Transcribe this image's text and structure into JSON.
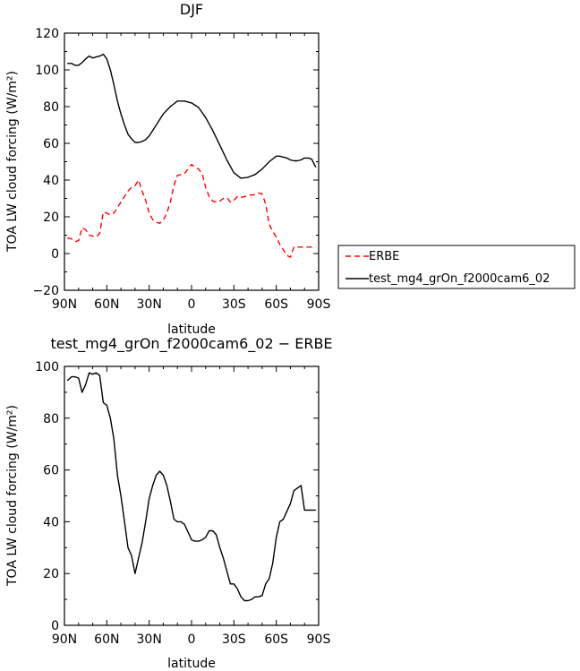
{
  "chart_data": [
    {
      "type": "line",
      "title": "DJF",
      "xlabel": "latitude",
      "ylabel": "TOA LW cloud forcing (W/m²)",
      "xlim": [
        90,
        -90
      ],
      "ylim": [
        -20,
        120
      ],
      "x_ticks": [
        "90N",
        "60N",
        "30N",
        "0",
        "30S",
        "60S",
        "90S"
      ],
      "y_ticks": [
        "−20",
        "0",
        "20",
        "40",
        "60",
        "80",
        "100",
        "120"
      ],
      "legend_position": "right",
      "series": [
        {
          "name": "ERBE",
          "color": "#ff0000",
          "style": "dashed",
          "x": [
            88,
            85,
            82.5,
            80,
            77.5,
            75,
            72.5,
            70,
            67.5,
            65,
            62.5,
            60,
            57.5,
            55,
            52.5,
            50,
            47.5,
            45,
            42.5,
            40,
            37.5,
            35,
            32.5,
            30,
            27.5,
            25,
            22.5,
            20,
            17.5,
            15,
            12.5,
            10,
            7.5,
            5,
            2.5,
            0,
            -2.5,
            -5,
            -7.5,
            -10,
            -12.5,
            -15,
            -17.5,
            -20,
            -22.5,
            -25,
            -27.5,
            -30,
            -32.5,
            -35,
            -37.5,
            -40,
            -42.5,
            -45,
            -47.5,
            -50,
            -52.5,
            -55,
            -57.5,
            -60,
            -62.5,
            -65,
            -67.5,
            -70,
            -72.5,
            -75,
            -77.5,
            -80,
            -82.5,
            -85,
            -88
          ],
          "values": [
            8.5,
            8,
            6.5,
            7,
            14,
            13,
            10,
            9.5,
            9,
            11,
            22.5,
            22,
            21,
            22,
            25,
            28,
            31,
            34,
            36,
            37,
            40,
            34,
            29,
            22,
            18.5,
            17,
            16.5,
            18,
            22,
            28,
            37,
            42.5,
            43,
            43.5,
            46,
            48.5,
            47,
            46,
            43.5,
            36,
            31,
            28.5,
            28,
            28.5,
            30,
            30.5,
            28,
            29,
            31,
            30.5,
            31,
            31.5,
            32,
            32,
            33,
            32.5,
            27,
            16,
            12,
            9,
            5,
            2,
            -1,
            -2,
            3.5,
            3.5,
            3.5,
            3.5,
            3.5,
            3.5,
            3.5
          ]
        },
        {
          "name": "test_mg4_grOn_f2000cam6_02",
          "color": "#000000",
          "style": "solid",
          "x": [
            88,
            85,
            82.5,
            80,
            77.5,
            75,
            72.5,
            70,
            67.5,
            65,
            62.5,
            60,
            57.5,
            55,
            52.5,
            50,
            47.5,
            45,
            42.5,
            40,
            37.5,
            35,
            32.5,
            30,
            25,
            20,
            15,
            10,
            5,
            0,
            -5,
            -10,
            -15,
            -20,
            -25,
            -30,
            -35,
            -40,
            -45,
            -50,
            -55,
            -60,
            -62.5,
            -65,
            -67.5,
            -70,
            -72.5,
            -75,
            -77.5,
            -80,
            -82.5,
            -85,
            -88
          ],
          "values": [
            103.5,
            103.5,
            102.5,
            102.5,
            104,
            106,
            107.5,
            106.5,
            107,
            107.5,
            108.5,
            106,
            100,
            92,
            83,
            76,
            70,
            65,
            62.5,
            60.5,
            60.5,
            61,
            62,
            64,
            70,
            76,
            80,
            83,
            83,
            82,
            79.5,
            74,
            67,
            59,
            51,
            44,
            41,
            41.5,
            43,
            46,
            50,
            53,
            53,
            52.5,
            52,
            51,
            50.5,
            50.5,
            51,
            52,
            52,
            51.5,
            47
          ]
        }
      ]
    },
    {
      "type": "line",
      "title": "test_mg4_grOn_f2000cam6_02 − ERBE",
      "xlabel": "latitude",
      "ylabel": "TOA LW cloud forcing (W/m²)",
      "xlim": [
        90,
        -90
      ],
      "ylim": [
        0,
        100
      ],
      "x_ticks": [
        "90N",
        "60N",
        "30N",
        "0",
        "30S",
        "60S",
        "90S"
      ],
      "y_ticks": [
        "0",
        "20",
        "40",
        "60",
        "80",
        "100"
      ],
      "series": [
        {
          "color": "#000000",
          "style": "solid",
          "x": [
            88,
            85,
            82.5,
            80,
            77.5,
            75,
            72.5,
            70,
            67.5,
            65,
            62.5,
            60,
            57.5,
            55,
            52.5,
            50,
            47.5,
            45,
            42.5,
            40,
            37.5,
            35,
            32.5,
            30,
            27.5,
            25,
            22.5,
            20,
            17.5,
            15,
            12.5,
            10,
            7.5,
            5,
            2.5,
            0,
            -2.5,
            -5,
            -7.5,
            -10,
            -12.5,
            -15,
            -17.5,
            -20,
            -22.5,
            -25,
            -27.5,
            -30,
            -32.5,
            -35,
            -37.5,
            -40,
            -42.5,
            -45,
            -47.5,
            -50,
            -52.5,
            -55,
            -57.5,
            -60,
            -62.5,
            -65,
            -67.5,
            -70,
            -72.5,
            -75,
            -77.5,
            -80,
            -82.5,
            -85,
            -88
          ],
          "values": [
            94.5,
            96,
            96,
            95.5,
            90,
            93,
            97.5,
            97,
            97.5,
            96.5,
            86,
            85,
            80,
            72,
            58,
            50,
            40,
            30,
            27,
            20,
            26,
            32,
            40,
            49,
            54,
            58,
            59.5,
            58,
            54,
            48,
            41,
            40,
            40,
            39,
            36,
            33,
            32.5,
            32.5,
            33,
            34,
            36.5,
            36.5,
            35,
            30,
            26,
            21,
            16,
            16,
            14,
            11,
            9.5,
            9.5,
            10,
            11,
            11,
            11.5,
            16,
            18,
            24,
            34,
            40,
            41,
            44,
            47,
            52,
            53,
            54,
            44.5,
            44.5,
            44.5,
            44.5
          ]
        }
      ]
    }
  ]
}
